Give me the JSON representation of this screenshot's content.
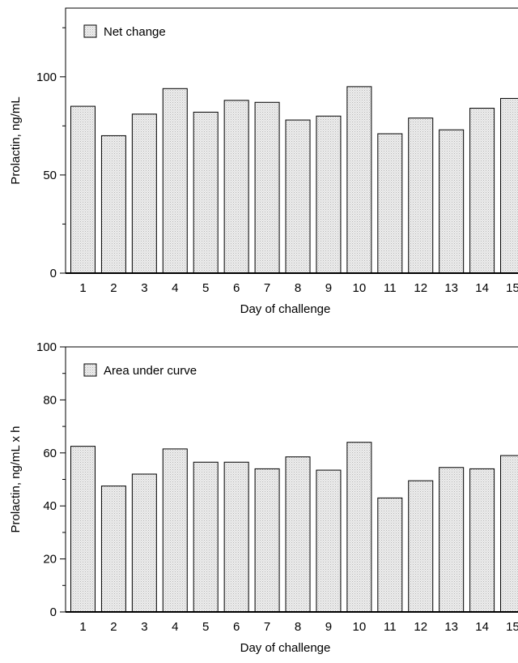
{
  "chart_data": [
    {
      "type": "bar",
      "categories": [
        "1",
        "2",
        "3",
        "4",
        "5",
        "6",
        "7",
        "8",
        "9",
        "10",
        "11",
        "12",
        "13",
        "14",
        "15"
      ],
      "series": [
        {
          "name": "Net change",
          "values": [
            85,
            70,
            81,
            94,
            82,
            88,
            87,
            78,
            80,
            95,
            71,
            79,
            73,
            84,
            89
          ]
        }
      ],
      "title": "",
      "xlabel": "Day of challenge",
      "ylabel": "Prolactin, ng/mL",
      "ylim": [
        0,
        135
      ],
      "yticks": [
        0,
        50,
        100
      ],
      "legend": "top-left",
      "grid": false
    },
    {
      "type": "bar",
      "categories": [
        "1",
        "2",
        "3",
        "4",
        "5",
        "6",
        "7",
        "8",
        "9",
        "10",
        "11",
        "12",
        "13",
        "14",
        "15"
      ],
      "series": [
        {
          "name": "Area under curve",
          "values": [
            62.5,
            47.5,
            52,
            61.5,
            56.5,
            56.5,
            54,
            58.5,
            53.5,
            64,
            43,
            49.5,
            54.5,
            54,
            59
          ]
        }
      ],
      "title": "",
      "xlabel": "Day of challenge",
      "ylabel": "Prolactin, ng/mL x h",
      "ylim": [
        0,
        100
      ],
      "yticks": [
        0,
        20,
        40,
        60,
        80,
        100
      ],
      "legend": "top-left",
      "grid": false
    }
  ],
  "colors": {
    "bar_fill": "#e3e3e3",
    "bar_stroke": "#000000"
  }
}
